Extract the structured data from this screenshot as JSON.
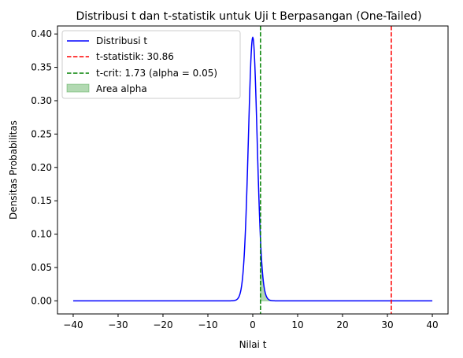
{
  "chart_data": {
    "type": "line",
    "title": "Distribusi t dan t-statistik untuk Uji t Berpasangan (One-Tailed)",
    "xlabel": "Nilai t",
    "ylabel": "Densitas Probabilitas",
    "xlim": [
      -43.5,
      43.5
    ],
    "ylim": [
      -0.0196,
      0.412
    ],
    "x_ticks": [
      -40,
      -30,
      -20,
      -10,
      0,
      10,
      20,
      30,
      40
    ],
    "y_ticks": [
      0.0,
      0.05,
      0.1,
      0.15,
      0.2,
      0.25,
      0.3,
      0.35,
      0.4
    ],
    "y_tick_labels": [
      "0.00",
      "0.05",
      "0.10",
      "0.15",
      "0.20",
      "0.25",
      "0.30",
      "0.35",
      "0.40"
    ],
    "distribution": {
      "name": "Distribusi t",
      "kind": "student-t",
      "df": 24,
      "x_range": [
        -40,
        40
      ],
      "color": "#0000ff"
    },
    "t_statistic": {
      "label": "t-statistik: 30.86",
      "value": 30.86,
      "color": "#ff0000"
    },
    "t_critical": {
      "label": "t-crit: 1.73 (alpha = 0.05)",
      "value": 1.73,
      "color": "#008000"
    },
    "alpha_area": {
      "label": "Area alpha",
      "from": 1.73,
      "to": 40,
      "color": "#008000"
    },
    "legend_position": "upper-left",
    "grid": false
  }
}
